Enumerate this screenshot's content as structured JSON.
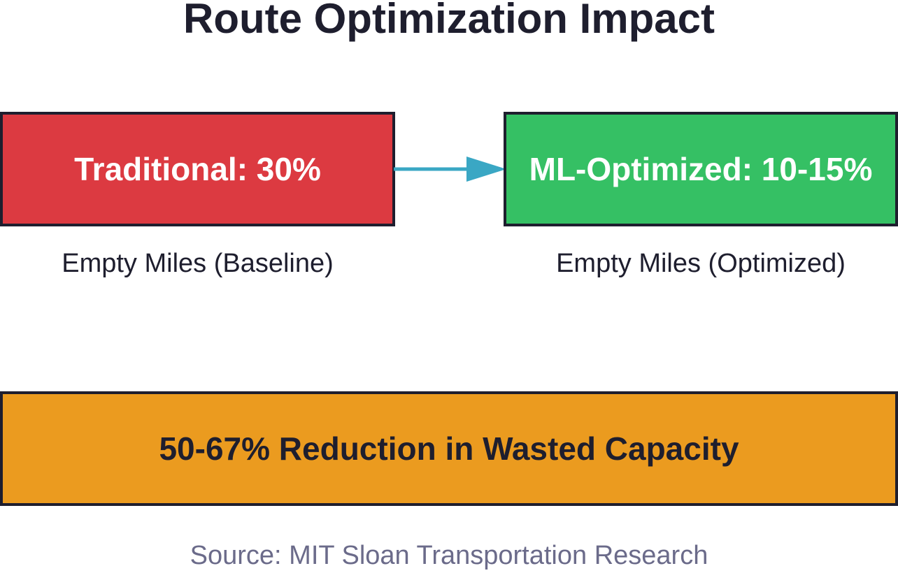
{
  "title": "Route Optimization Impact",
  "baseline": {
    "label": "Traditional: 30%",
    "caption": "Empty Miles (Baseline)"
  },
  "optimized": {
    "label": "ML-Optimized: 10-15%",
    "caption": "Empty Miles (Optimized)"
  },
  "result": {
    "label": "50-67% Reduction in Wasted Capacity"
  },
  "source": "Source: MIT Sloan Transportation Research",
  "colors": {
    "baseline_fill": "#dc3a41",
    "optimized_fill": "#35c064",
    "result_fill": "#eb9b1f",
    "arrow": "#3aa7c4",
    "border": "#1e1e2e",
    "source_text": "#6b6b8a"
  }
}
